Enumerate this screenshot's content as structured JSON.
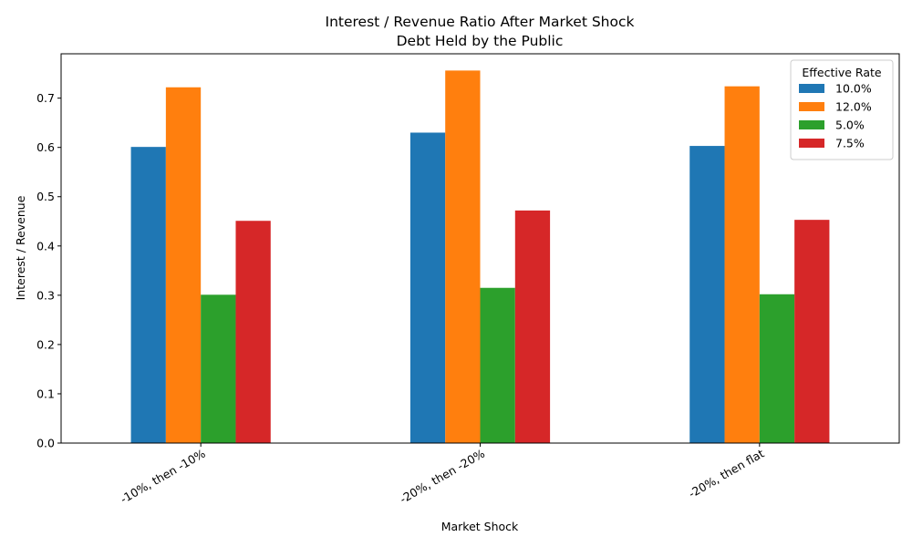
{
  "chart_data": {
    "type": "bar",
    "title": "Interest / Revenue Ratio After Market Shock",
    "subtitle": "Debt Held by the Public",
    "xlabel": "Market Shock",
    "ylabel": "Interest / Revenue",
    "categories": [
      "-10%, then -10%",
      "-20%, then -20%",
      "-20%, then flat"
    ],
    "series": [
      {
        "name": "10.0%",
        "color": "#1f77b4",
        "values": [
          0.601,
          0.63,
          0.603
        ]
      },
      {
        "name": "12.0%",
        "color": "#ff7f0e",
        "values": [
          0.722,
          0.756,
          0.724
        ]
      },
      {
        "name": "5.0%",
        "color": "#2ca02c",
        "values": [
          0.301,
          0.315,
          0.302
        ]
      },
      {
        "name": "7.5%",
        "color": "#d62728",
        "values": [
          0.451,
          0.472,
          0.453
        ]
      }
    ],
    "ylim": [
      0,
      0.79
    ],
    "yticks": [
      "0.0",
      "0.1",
      "0.2",
      "0.3",
      "0.4",
      "0.5",
      "0.6",
      "0.7"
    ],
    "legend": {
      "title": "Effective Rate",
      "position": "top-right"
    },
    "grid": false
  }
}
